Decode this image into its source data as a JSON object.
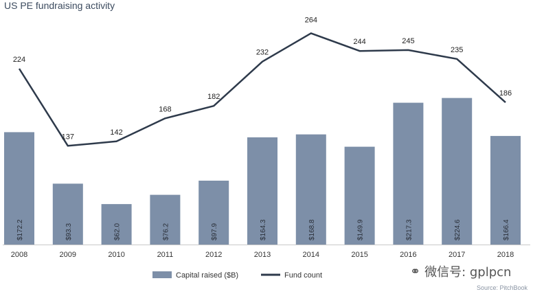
{
  "chart_data": {
    "type": "bar",
    "title": "US PE fundraising activity",
    "categories": [
      "2008",
      "2009",
      "2010",
      "2011",
      "2012",
      "2013",
      "2014",
      "2015",
      "2016",
      "2017",
      "2018"
    ],
    "series": [
      {
        "name": "Capital raised ($B)",
        "type": "bar",
        "values": [
          172.2,
          93.3,
          62.0,
          76.2,
          97.9,
          164.3,
          168.8,
          149.9,
          217.3,
          224.6,
          166.4
        ],
        "labels": [
          "$172.2",
          "$93.3",
          "$62.0",
          "$76.2",
          "$97.9",
          "$164.3",
          "$168.8",
          "$149.9",
          "$217.3",
          "$224.6",
          "$166.4"
        ]
      },
      {
        "name": "Fund count",
        "type": "line",
        "values": [
          224,
          137,
          142,
          168,
          182,
          232,
          264,
          244,
          245,
          235,
          186
        ]
      }
    ],
    "legend": {
      "position": "bottom",
      "items": [
        "Capital raised ($B)",
        "Fund count"
      ]
    },
    "grid": false,
    "colors": {
      "bar": "#7d8fa8",
      "line": "#2e3a4b",
      "axis": "#c8c8c8",
      "title": "#3b4a5e"
    }
  },
  "source": "Source: PitchBook",
  "watermark": {
    "text": "微信号: gplpcn"
  }
}
